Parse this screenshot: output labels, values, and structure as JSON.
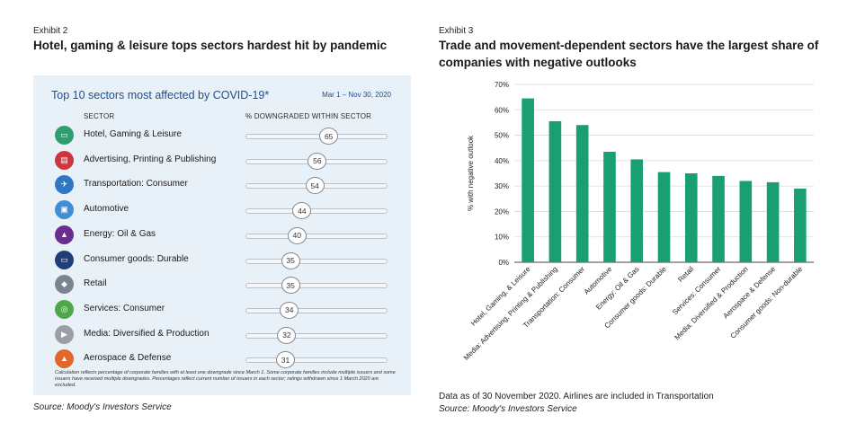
{
  "left": {
    "exhibit": "Exhibit 2",
    "title": "Hotel, gaming & leisure tops sectors hardest hit by pandemic",
    "panel_title": "Top 10 sectors most affected by COVID-19*",
    "date_range": "Mar 1 – Nov 30, 2020",
    "col_sector": "SECTOR",
    "col_pct": "% DOWNGRADED WITHIN SECTOR",
    "note": "Calculation reflects percentage of corporate families with at least one downgrade since March 1. Some corporate families include multiple issuers and some issuers have received multiple downgrades. Percentages reflect current number of issuers in each sector; ratings withdrawn since 1 March 2020 are excluded.",
    "source": "Source: Moody's Investors Service",
    "rows": [
      {
        "label": "Hotel, Gaming & Leisure",
        "value": 65,
        "icon": "hotel-bed-icon",
        "color": "#2e9e6e",
        "glyph": "▭"
      },
      {
        "label": "Advertising, Printing & Publishing",
        "value": 56,
        "icon": "newspaper-icon",
        "color": "#d0343c",
        "glyph": "▤"
      },
      {
        "label": "Transportation: Consumer",
        "value": 54,
        "icon": "airplane-icon",
        "color": "#2d78c4",
        "glyph": "✈"
      },
      {
        "label": "Automotive",
        "value": 44,
        "icon": "car-icon",
        "color": "#3f8fd6",
        "glyph": "▣"
      },
      {
        "label": "Energy: Oil & Gas",
        "value": 40,
        "icon": "oil-derrick-icon",
        "color": "#6a2d8c",
        "glyph": "▲"
      },
      {
        "label": "Consumer goods: Durable",
        "value": 35,
        "icon": "television-icon",
        "color": "#1f3f7a",
        "glyph": "▭"
      },
      {
        "label": "Retail",
        "value": 35,
        "icon": "price-tag-icon",
        "color": "#7a8390",
        "glyph": "◆"
      },
      {
        "label": "Services: Consumer",
        "value": 34,
        "icon": "service-bell-icon",
        "color": "#4ea84a",
        "glyph": "◎"
      },
      {
        "label": "Media: Diversified & Production",
        "value": 32,
        "icon": "play-icon",
        "color": "#9b9fa5",
        "glyph": "▶"
      },
      {
        "label": "Aerospace & Defense",
        "value": 31,
        "icon": "rocket-icon",
        "color": "#e0682a",
        "glyph": "▲"
      }
    ]
  },
  "right": {
    "exhibit": "Exhibit 3",
    "title_line1": "Trade and movement-dependent sectors have the largest share of",
    "title_line2": "companies with negative outlooks",
    "note": "Data as of 30 November 2020. Airlines are included in Transportation",
    "source": "Source: Moody's Investors Service"
  },
  "chart_data": {
    "type": "bar",
    "ylabel": "% with negative outlook",
    "ylim": [
      0,
      70
    ],
    "yticks": [
      0,
      10,
      20,
      30,
      40,
      50,
      60,
      70
    ],
    "ytick_labels": [
      "0%",
      "10%",
      "20%",
      "30%",
      "40%",
      "50%",
      "60%",
      "70%"
    ],
    "grid": true,
    "color": "#1a9e74",
    "categories": [
      "Hotel, Gaming, & Leisure",
      "Media: Advertising, Printing & Publishing",
      "Transportation: Consumer",
      "Automotive",
      "Energy: Oil & Gas",
      "Consumer goods: Durable",
      "Retail",
      "Services: Consumer",
      "Media: Diversified & Production",
      "Aerospace & Defense",
      "Consumer goods: Non-durable"
    ],
    "values": [
      64.5,
      55.5,
      54,
      43.5,
      40.5,
      35.5,
      35,
      34,
      32,
      31.5,
      29
    ]
  }
}
